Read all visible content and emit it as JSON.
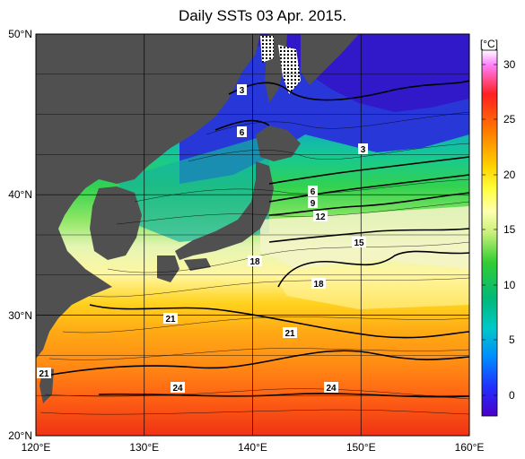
{
  "title": "Daily SSTs 03 Apr. 2015.",
  "map": {
    "lon_labels": [
      "120°E",
      "130°E",
      "140°E",
      "150°E",
      "160°E"
    ],
    "lat_labels": [
      "50°N",
      "40°N",
      "30°N",
      "20°N"
    ],
    "contour_labels": [
      "3",
      "6",
      "3",
      "6",
      "9",
      "12",
      "15",
      "18",
      "18",
      "21",
      "21",
      "21",
      "24",
      "24"
    ]
  },
  "colorbar": {
    "unit": "[°C]",
    "ticks": [
      "30",
      "25",
      "20",
      "15",
      "10",
      "5",
      "0"
    ],
    "stops": [
      "#ff7fff",
      "#ff1a1a",
      "#ff7a00",
      "#ffd400",
      "#ffff40",
      "#ffffb0",
      "#c8f07a",
      "#32cd32",
      "#00b97a",
      "#00c8c8",
      "#008cff",
      "#2030ff",
      "#4b00c8"
    ]
  },
  "colors": {
    "land": "#505050",
    "sea_ice": "#ffffff",
    "grid": "#000000"
  }
}
